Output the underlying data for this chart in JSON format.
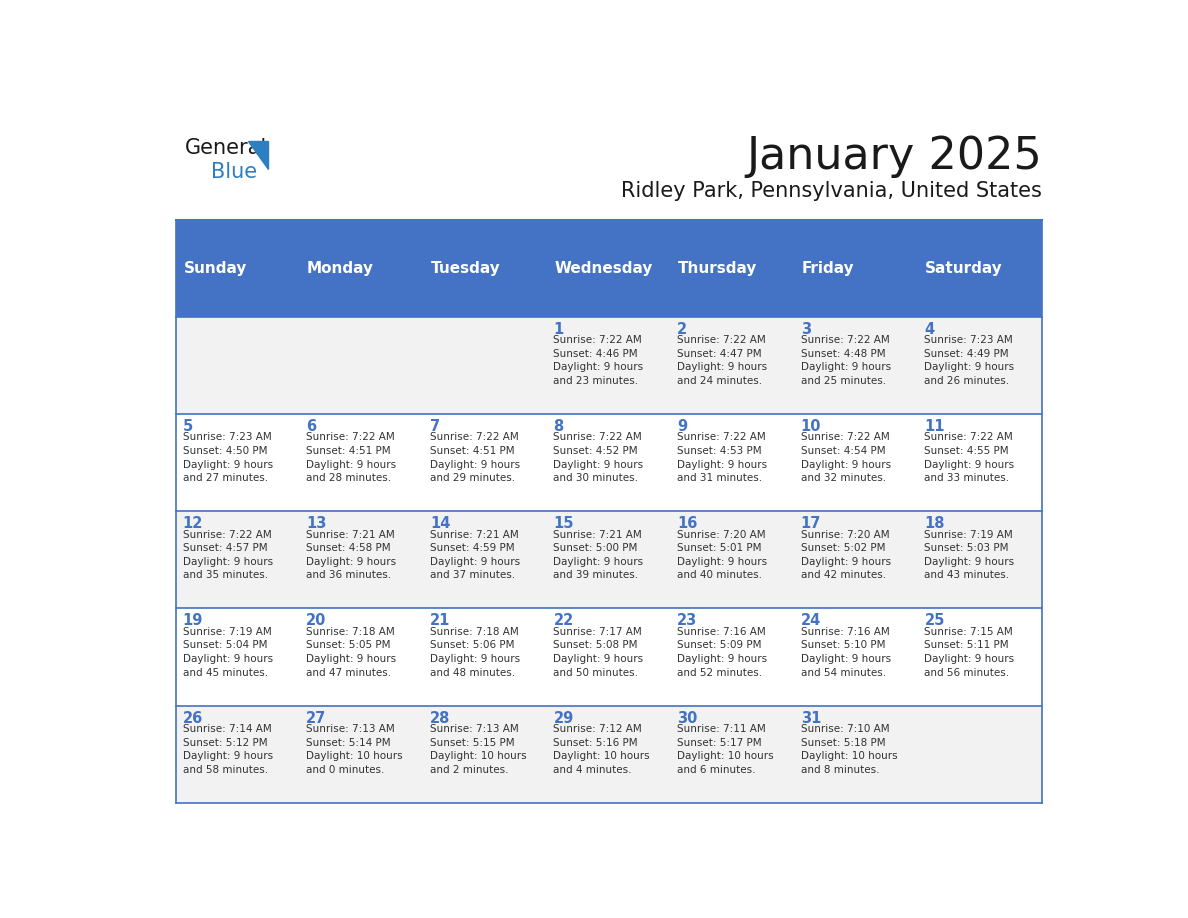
{
  "title": "January 2025",
  "subtitle": "Ridley Park, Pennsylvania, United States",
  "days_of_week": [
    "Sunday",
    "Monday",
    "Tuesday",
    "Wednesday",
    "Thursday",
    "Friday",
    "Saturday"
  ],
  "header_bg": "#4472C4",
  "header_text": "#FFFFFF",
  "row_bg_odd": "#F2F2F2",
  "row_bg_even": "#FFFFFF",
  "cell_border": "#4472C4",
  "title_color": "#1a1a1a",
  "subtitle_color": "#1a1a1a",
  "day_number_color": "#4472C4",
  "cell_text_color": "#333333",
  "weeks": [
    [
      {
        "day": "",
        "info": ""
      },
      {
        "day": "",
        "info": ""
      },
      {
        "day": "",
        "info": ""
      },
      {
        "day": "1",
        "info": "Sunrise: 7:22 AM\nSunset: 4:46 PM\nDaylight: 9 hours\nand 23 minutes."
      },
      {
        "day": "2",
        "info": "Sunrise: 7:22 AM\nSunset: 4:47 PM\nDaylight: 9 hours\nand 24 minutes."
      },
      {
        "day": "3",
        "info": "Sunrise: 7:22 AM\nSunset: 4:48 PM\nDaylight: 9 hours\nand 25 minutes."
      },
      {
        "day": "4",
        "info": "Sunrise: 7:23 AM\nSunset: 4:49 PM\nDaylight: 9 hours\nand 26 minutes."
      }
    ],
    [
      {
        "day": "5",
        "info": "Sunrise: 7:23 AM\nSunset: 4:50 PM\nDaylight: 9 hours\nand 27 minutes."
      },
      {
        "day": "6",
        "info": "Sunrise: 7:22 AM\nSunset: 4:51 PM\nDaylight: 9 hours\nand 28 minutes."
      },
      {
        "day": "7",
        "info": "Sunrise: 7:22 AM\nSunset: 4:51 PM\nDaylight: 9 hours\nand 29 minutes."
      },
      {
        "day": "8",
        "info": "Sunrise: 7:22 AM\nSunset: 4:52 PM\nDaylight: 9 hours\nand 30 minutes."
      },
      {
        "day": "9",
        "info": "Sunrise: 7:22 AM\nSunset: 4:53 PM\nDaylight: 9 hours\nand 31 minutes."
      },
      {
        "day": "10",
        "info": "Sunrise: 7:22 AM\nSunset: 4:54 PM\nDaylight: 9 hours\nand 32 minutes."
      },
      {
        "day": "11",
        "info": "Sunrise: 7:22 AM\nSunset: 4:55 PM\nDaylight: 9 hours\nand 33 minutes."
      }
    ],
    [
      {
        "day": "12",
        "info": "Sunrise: 7:22 AM\nSunset: 4:57 PM\nDaylight: 9 hours\nand 35 minutes."
      },
      {
        "day": "13",
        "info": "Sunrise: 7:21 AM\nSunset: 4:58 PM\nDaylight: 9 hours\nand 36 minutes."
      },
      {
        "day": "14",
        "info": "Sunrise: 7:21 AM\nSunset: 4:59 PM\nDaylight: 9 hours\nand 37 minutes."
      },
      {
        "day": "15",
        "info": "Sunrise: 7:21 AM\nSunset: 5:00 PM\nDaylight: 9 hours\nand 39 minutes."
      },
      {
        "day": "16",
        "info": "Sunrise: 7:20 AM\nSunset: 5:01 PM\nDaylight: 9 hours\nand 40 minutes."
      },
      {
        "day": "17",
        "info": "Sunrise: 7:20 AM\nSunset: 5:02 PM\nDaylight: 9 hours\nand 42 minutes."
      },
      {
        "day": "18",
        "info": "Sunrise: 7:19 AM\nSunset: 5:03 PM\nDaylight: 9 hours\nand 43 minutes."
      }
    ],
    [
      {
        "day": "19",
        "info": "Sunrise: 7:19 AM\nSunset: 5:04 PM\nDaylight: 9 hours\nand 45 minutes."
      },
      {
        "day": "20",
        "info": "Sunrise: 7:18 AM\nSunset: 5:05 PM\nDaylight: 9 hours\nand 47 minutes."
      },
      {
        "day": "21",
        "info": "Sunrise: 7:18 AM\nSunset: 5:06 PM\nDaylight: 9 hours\nand 48 minutes."
      },
      {
        "day": "22",
        "info": "Sunrise: 7:17 AM\nSunset: 5:08 PM\nDaylight: 9 hours\nand 50 minutes."
      },
      {
        "day": "23",
        "info": "Sunrise: 7:16 AM\nSunset: 5:09 PM\nDaylight: 9 hours\nand 52 minutes."
      },
      {
        "day": "24",
        "info": "Sunrise: 7:16 AM\nSunset: 5:10 PM\nDaylight: 9 hours\nand 54 minutes."
      },
      {
        "day": "25",
        "info": "Sunrise: 7:15 AM\nSunset: 5:11 PM\nDaylight: 9 hours\nand 56 minutes."
      }
    ],
    [
      {
        "day": "26",
        "info": "Sunrise: 7:14 AM\nSunset: 5:12 PM\nDaylight: 9 hours\nand 58 minutes."
      },
      {
        "day": "27",
        "info": "Sunrise: 7:13 AM\nSunset: 5:14 PM\nDaylight: 10 hours\nand 0 minutes."
      },
      {
        "day": "28",
        "info": "Sunrise: 7:13 AM\nSunset: 5:15 PM\nDaylight: 10 hours\nand 2 minutes."
      },
      {
        "day": "29",
        "info": "Sunrise: 7:12 AM\nSunset: 5:16 PM\nDaylight: 10 hours\nand 4 minutes."
      },
      {
        "day": "30",
        "info": "Sunrise: 7:11 AM\nSunset: 5:17 PM\nDaylight: 10 hours\nand 6 minutes."
      },
      {
        "day": "31",
        "info": "Sunrise: 7:10 AM\nSunset: 5:18 PM\nDaylight: 10 hours\nand 8 minutes."
      },
      {
        "day": "",
        "info": ""
      }
    ]
  ],
  "logo_general_color": "#1a1a1a",
  "logo_blue_color": "#2e7fc1",
  "logo_triangle_color": "#2e7fc1"
}
